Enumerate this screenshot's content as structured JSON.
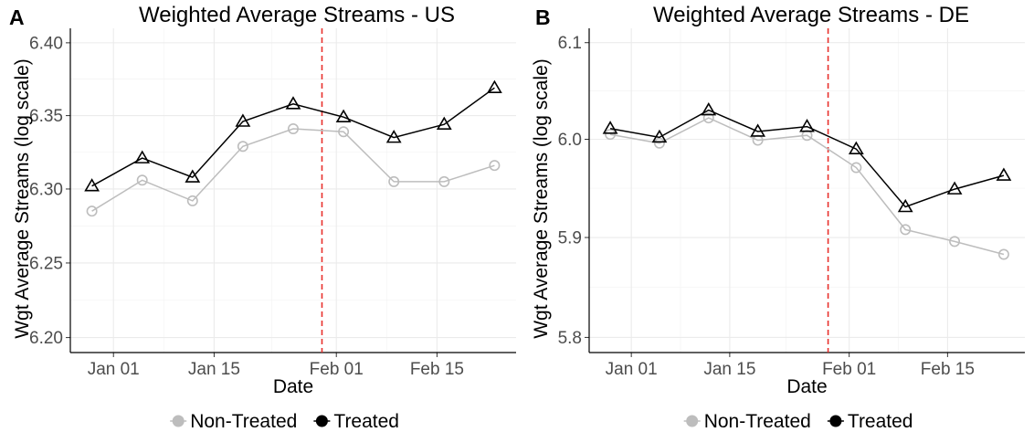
{
  "chart_data": [
    {
      "type": "line",
      "panel_letter": "A",
      "title": "Weighted Average Streams - US",
      "xlabel": "Date",
      "ylabel": "Wgt Average Streams (log scale)",
      "x_ticks": [
        "Jan 01",
        "Jan 15",
        "Feb 01",
        "Feb 15"
      ],
      "x_tick_dates": [
        "2021-01-01",
        "2021-01-15",
        "2021-02-01",
        "2021-02-15"
      ],
      "xlim": [
        "2020-12-26",
        "2021-02-26"
      ],
      "y_ticks": [
        "6.20",
        "6.25",
        "6.30",
        "6.35",
        "6.40"
      ],
      "y_tick_values": [
        6.2,
        6.25,
        6.3,
        6.35,
        6.4
      ],
      "ylim": [
        6.19,
        6.41
      ],
      "log_scale": true,
      "intervention_date": "2021-01-30",
      "intervention_color": "#e8302c",
      "x": [
        "2020-12-29",
        "2021-01-05",
        "2021-01-12",
        "2021-01-19",
        "2021-01-26",
        "2021-02-02",
        "2021-02-09",
        "2021-02-16",
        "2021-02-23"
      ],
      "series": [
        {
          "name": "Non-Treated",
          "color": "#bdbdbd",
          "marker": "circle",
          "values": [
            6.285,
            6.306,
            6.292,
            6.329,
            6.341,
            6.339,
            6.305,
            6.305,
            6.316
          ]
        },
        {
          "name": "Treated",
          "color": "#000000",
          "marker": "triangle",
          "values": [
            6.302,
            6.321,
            6.308,
            6.346,
            6.358,
            6.349,
            6.335,
            6.344,
            6.369
          ]
        }
      ],
      "grid": true,
      "legend_position": "bottom"
    },
    {
      "type": "line",
      "panel_letter": "B",
      "title": "Weighted Average Streams - DE",
      "xlabel": "Date",
      "ylabel": "Wgt Average Streams (log scale)",
      "x_ticks": [
        "Jan 01",
        "Jan 15",
        "Feb 01",
        "Feb 15"
      ],
      "x_tick_dates": [
        "2021-01-01",
        "2021-01-15",
        "2021-02-01",
        "2021-02-15"
      ],
      "xlim": [
        "2020-12-26",
        "2021-02-26"
      ],
      "y_ticks": [
        "5.8",
        "5.9",
        "6.0",
        "6.1"
      ],
      "y_tick_values": [
        5.8,
        5.9,
        6.0,
        6.1
      ],
      "ylim": [
        5.785,
        6.115
      ],
      "log_scale": true,
      "intervention_date": "2021-01-29",
      "intervention_color": "#e8302c",
      "x": [
        "2020-12-29",
        "2021-01-05",
        "2021-01-12",
        "2021-01-19",
        "2021-01-26",
        "2021-02-02",
        "2021-02-09",
        "2021-02-16",
        "2021-02-23"
      ],
      "series": [
        {
          "name": "Non-Treated",
          "color": "#bdbdbd",
          "marker": "circle",
          "values": [
            6.005,
            5.996,
            6.022,
            5.999,
            6.004,
            5.971,
            5.908,
            5.896,
            5.883
          ]
        },
        {
          "name": "Treated",
          "color": "#000000",
          "marker": "triangle",
          "values": [
            6.011,
            6.002,
            6.03,
            6.008,
            6.013,
            5.99,
            5.931,
            5.949,
            5.963
          ]
        }
      ],
      "grid": true,
      "legend_position": "bottom"
    }
  ]
}
